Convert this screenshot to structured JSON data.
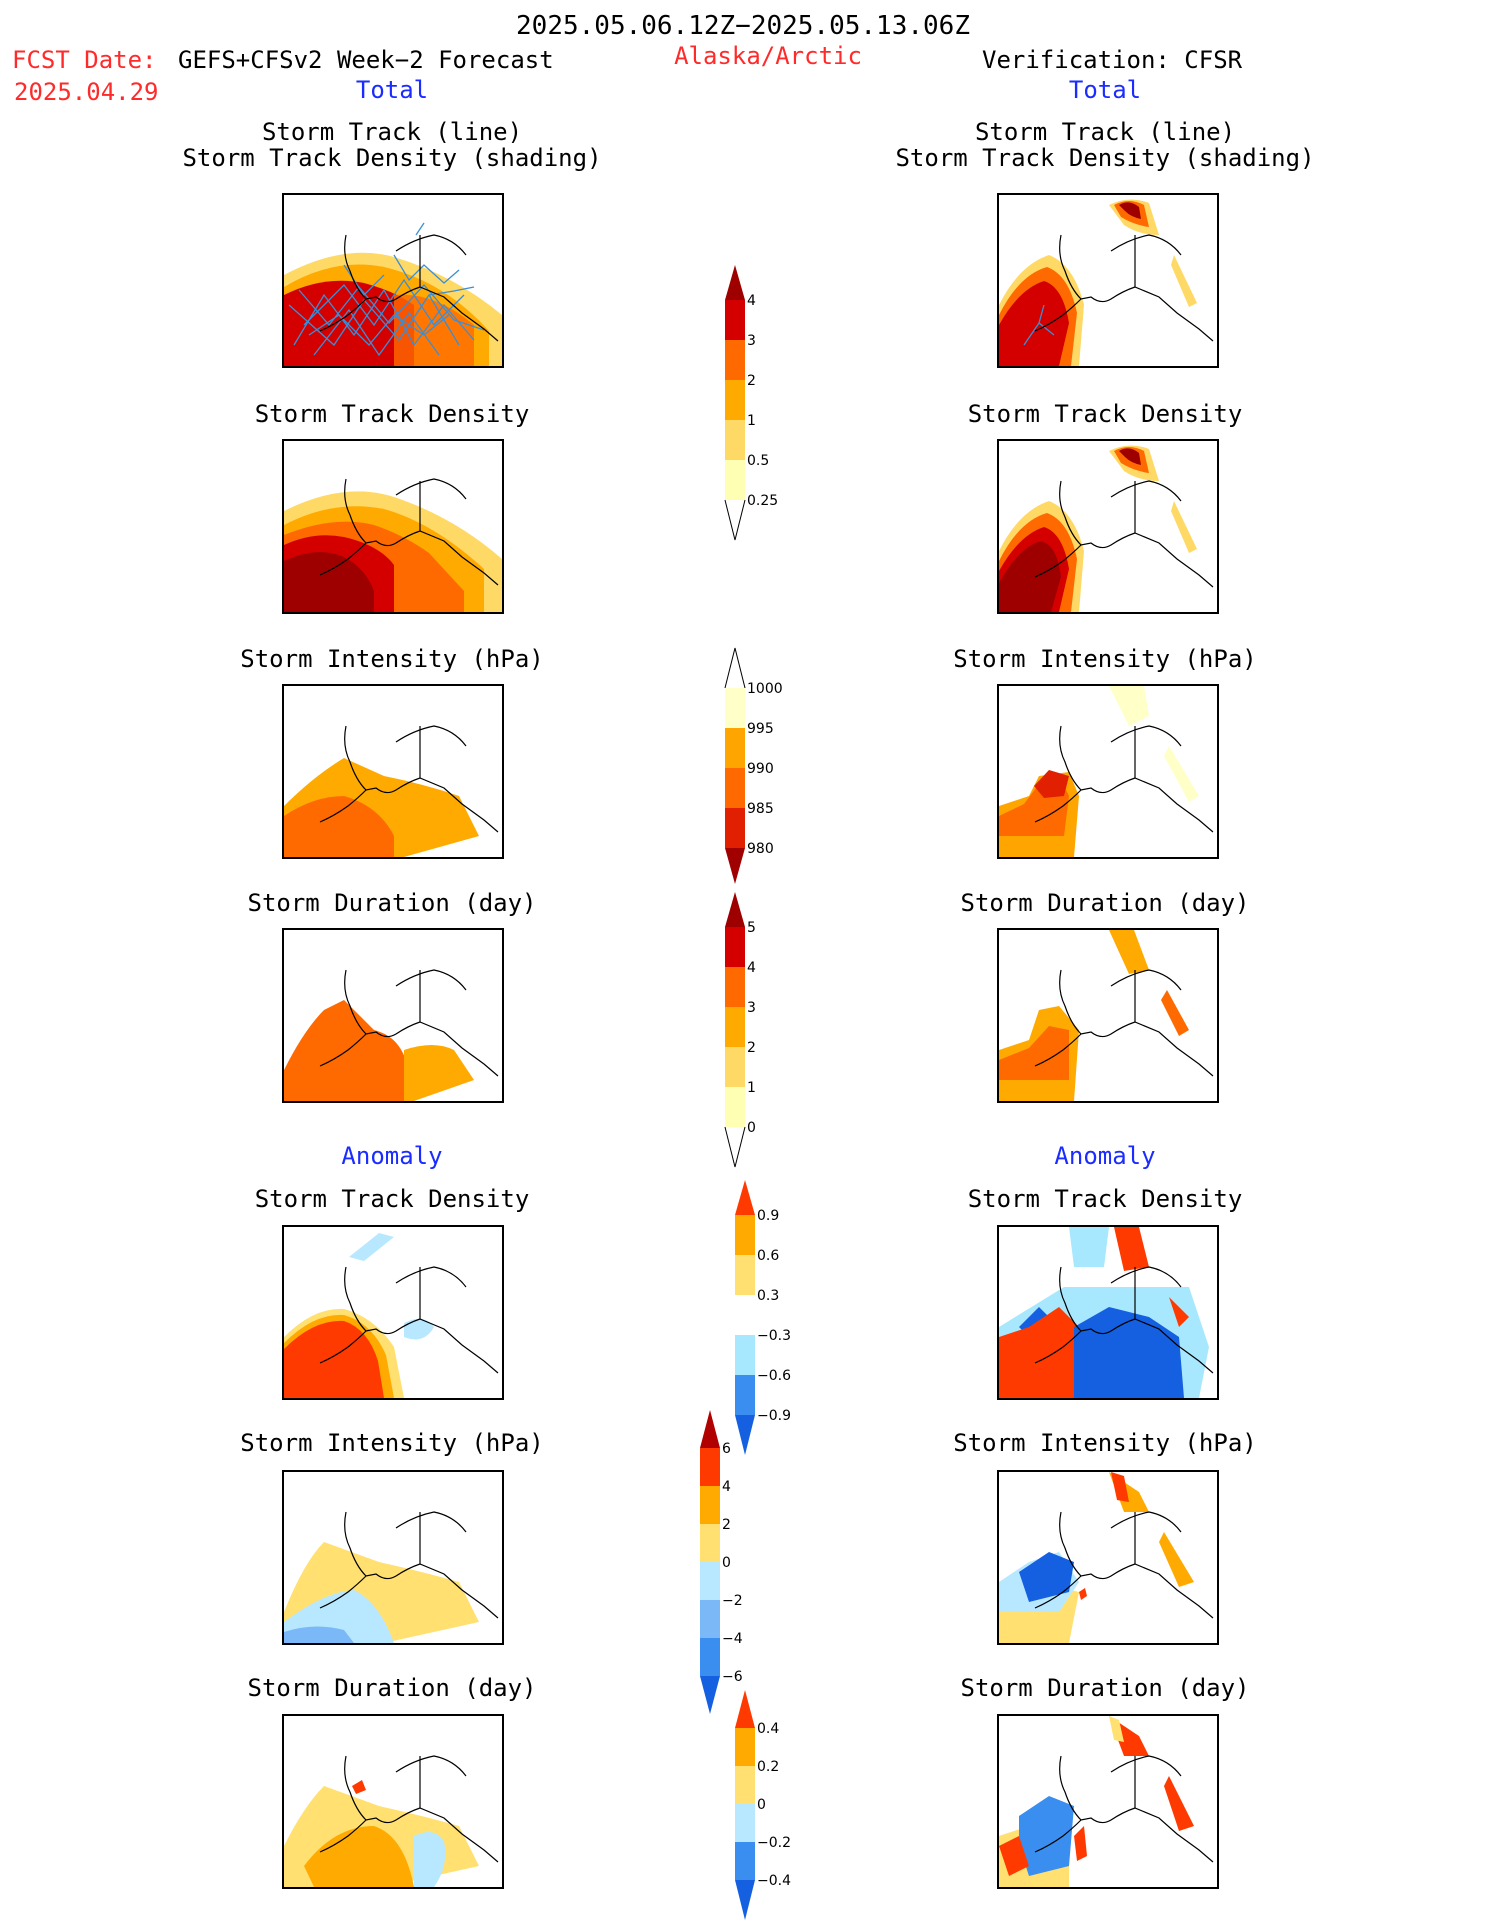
{
  "header": {
    "period": "2025.05.06.12Z−2025.05.13.06Z",
    "fcst_label": "FCST Date:",
    "fcst_model": "GEFS+CFSv2 Week−2 Forecast",
    "fcst_date": "2025.04.29",
    "region": "Alaska/Arctic",
    "verification": "Verification: CFSR"
  },
  "columns": {
    "left_total": "Total",
    "right_total": "Total",
    "left_anomaly": "Anomaly",
    "right_anomaly": "Anomaly"
  },
  "panels": {
    "track_title_1": "Storm Track (line)",
    "track_title_2": "Storm Track Density (shading)",
    "density": "Storm Track Density",
    "intensity": "Storm Intensity (hPa)",
    "duration": "Storm Duration (day)"
  },
  "colorbars": {
    "density_total": {
      "labels": [
        "4",
        "3",
        "2",
        "1",
        "0.5",
        "0.25"
      ],
      "colors": [
        "#ffffb4",
        "#ffd966",
        "#ffaa00",
        "#ff6a00",
        "#ff2a00",
        "#d40000",
        "#9e0000"
      ]
    },
    "intensity_total": {
      "labels": [
        "1000",
        "995",
        "990",
        "985",
        "980"
      ],
      "colors": [
        "#ffffc8",
        "#ffa500",
        "#ff6a00",
        "#e02000",
        "#a00000"
      ]
    },
    "duration_total": {
      "labels": [
        "5",
        "4",
        "3",
        "2",
        "1",
        "0"
      ],
      "colors": [
        "#ffffb4",
        "#ffd966",
        "#ffaa00",
        "#ff6a00",
        "#ff2a00",
        "#d40000",
        "#9e0000"
      ]
    },
    "density_anom": {
      "labels": [
        "0.9",
        "0.6",
        "0.3",
        "−0.3",
        "−0.6",
        "−0.9"
      ],
      "colors": [
        "#1560e0",
        "#3a8ef0",
        "#a8e8ff",
        "#ffffff",
        "#ffe070",
        "#ffaa00",
        "#ff3a00"
      ]
    },
    "intensity_anom": {
      "labels": [
        "6",
        "4",
        "2",
        "0",
        "−2",
        "−4",
        "−6"
      ],
      "colors": [
        "#1560e0",
        "#3a8ef0",
        "#7ab8f8",
        "#b8e8ff",
        "#ffe070",
        "#ffaa00",
        "#ff3a00",
        "#b00000"
      ]
    },
    "duration_anom": {
      "labels": [
        "0.4",
        "0.2",
        "0",
        "−0.2",
        "−0.4"
      ],
      "colors": [
        "#1560e0",
        "#3a8ef0",
        "#b8e8ff",
        "#ffe070",
        "#ffaa00",
        "#ff3a00"
      ]
    }
  }
}
